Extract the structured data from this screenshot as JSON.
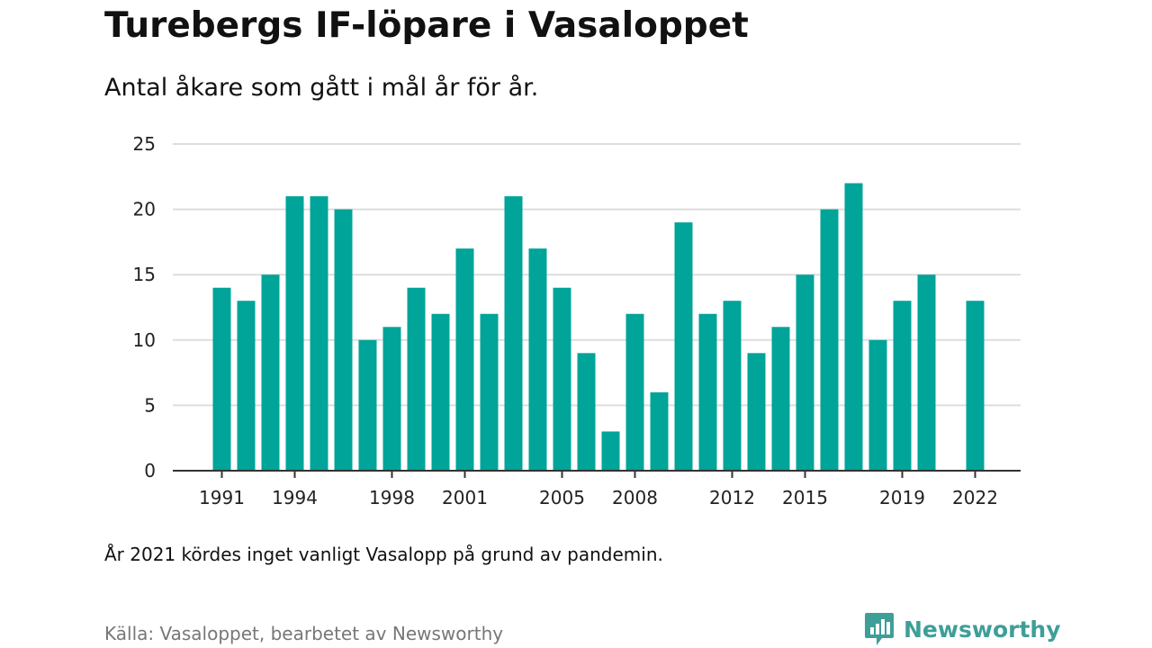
{
  "title": "Turebergs IF-löpare i Vasaloppet",
  "subtitle": "Antal åkare som gått i mål år för år.",
  "note": "År 2021 kördes inget vanligt Vasalopp på grund av pandemin.",
  "source": "Källa: Vasaloppet, bearbetet av Newsworthy",
  "brand": {
    "name": "Newsworthy",
    "icon": "newsworthy-logo-icon",
    "color": "#3f9e98"
  },
  "colors": {
    "bar": "#00a499",
    "grid": "#dddddd",
    "axis": "#333333"
  },
  "chart_data": {
    "type": "bar",
    "categories": [
      1991,
      1992,
      1993,
      1994,
      1995,
      1996,
      1997,
      1998,
      1999,
      2000,
      2001,
      2002,
      2003,
      2004,
      2005,
      2006,
      2007,
      2008,
      2009,
      2010,
      2011,
      2012,
      2013,
      2014,
      2015,
      2016,
      2017,
      2018,
      2019,
      2020,
      2021,
      2022
    ],
    "values": [
      14,
      13,
      15,
      21,
      21,
      20,
      10,
      11,
      14,
      12,
      17,
      12,
      21,
      17,
      14,
      9,
      3,
      12,
      6,
      19,
      12,
      13,
      9,
      11,
      15,
      20,
      22,
      10,
      13,
      15,
      null,
      13
    ],
    "x_tick_labels": [
      "1991",
      "1994",
      "1998",
      "2001",
      "2005",
      "2008",
      "2012",
      "2015",
      "2019",
      "2022"
    ],
    "y_ticks": [
      0,
      5,
      10,
      15,
      20,
      25
    ],
    "ylim": [
      0,
      25
    ],
    "grid": true
  }
}
